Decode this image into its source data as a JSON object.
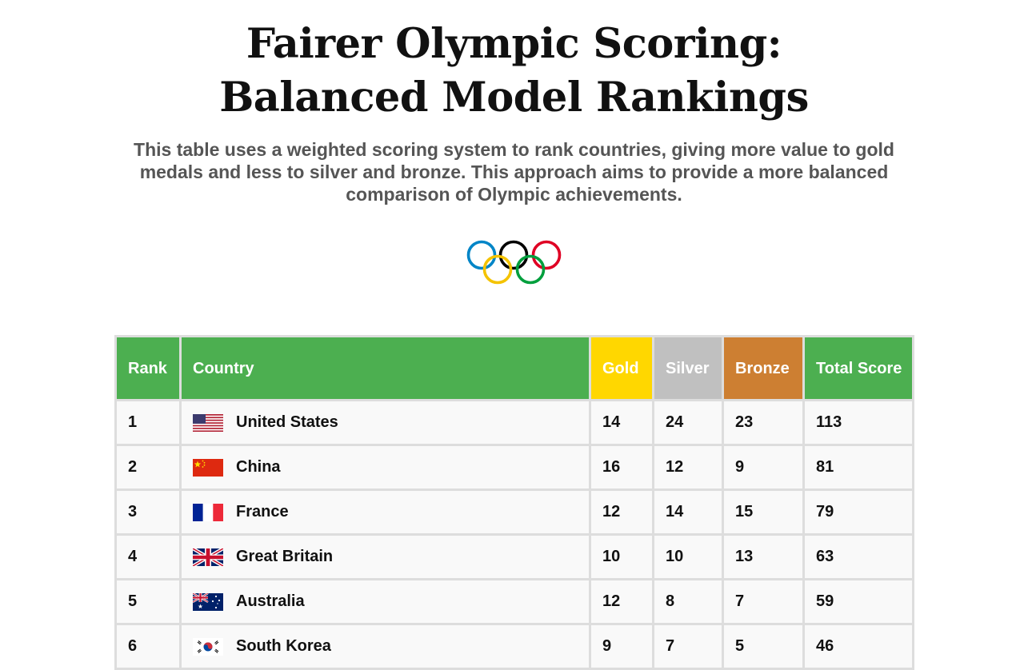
{
  "header": {
    "title_line1": "Fairer Olympic Scoring:",
    "title_line2": "Balanced Model Rankings",
    "description": "This table uses a weighted scoring system to rank countries, giving more value to gold medals and less to silver and bronze. This approach aims to provide a more balanced comparison of Olympic achievements.",
    "logo_icon": "olympic-rings-icon"
  },
  "table": {
    "columns": {
      "rank": "Rank",
      "country": "Country",
      "gold": "Gold",
      "silver": "Silver",
      "bronze": "Bronze",
      "total": "Total Score"
    },
    "column_colors": {
      "default": "#4caf50",
      "gold": "#ffd700",
      "silver": "#c0c0c0",
      "bronze": "#cd7f32"
    },
    "rows": [
      {
        "rank": "1",
        "flag_icon": "usa-flag-icon",
        "country": "United States",
        "gold": "14",
        "silver": "24",
        "bronze": "23",
        "total": "113"
      },
      {
        "rank": "2",
        "flag_icon": "china-flag-icon",
        "country": "China",
        "gold": "16",
        "silver": "12",
        "bronze": "9",
        "total": "81"
      },
      {
        "rank": "3",
        "flag_icon": "france-flag-icon",
        "country": "France",
        "gold": "12",
        "silver": "14",
        "bronze": "15",
        "total": "79"
      },
      {
        "rank": "4",
        "flag_icon": "great-britain-flag-icon",
        "country": "Great Britain",
        "gold": "10",
        "silver": "10",
        "bronze": "13",
        "total": "63"
      },
      {
        "rank": "5",
        "flag_icon": "australia-flag-icon",
        "country": "Australia",
        "gold": "12",
        "silver": "8",
        "bronze": "7",
        "total": "59"
      },
      {
        "rank": "6",
        "flag_icon": "south-korea-flag-icon",
        "country": "South Korea",
        "gold": "9",
        "silver": "7",
        "bronze": "5",
        "total": "46"
      }
    ]
  }
}
